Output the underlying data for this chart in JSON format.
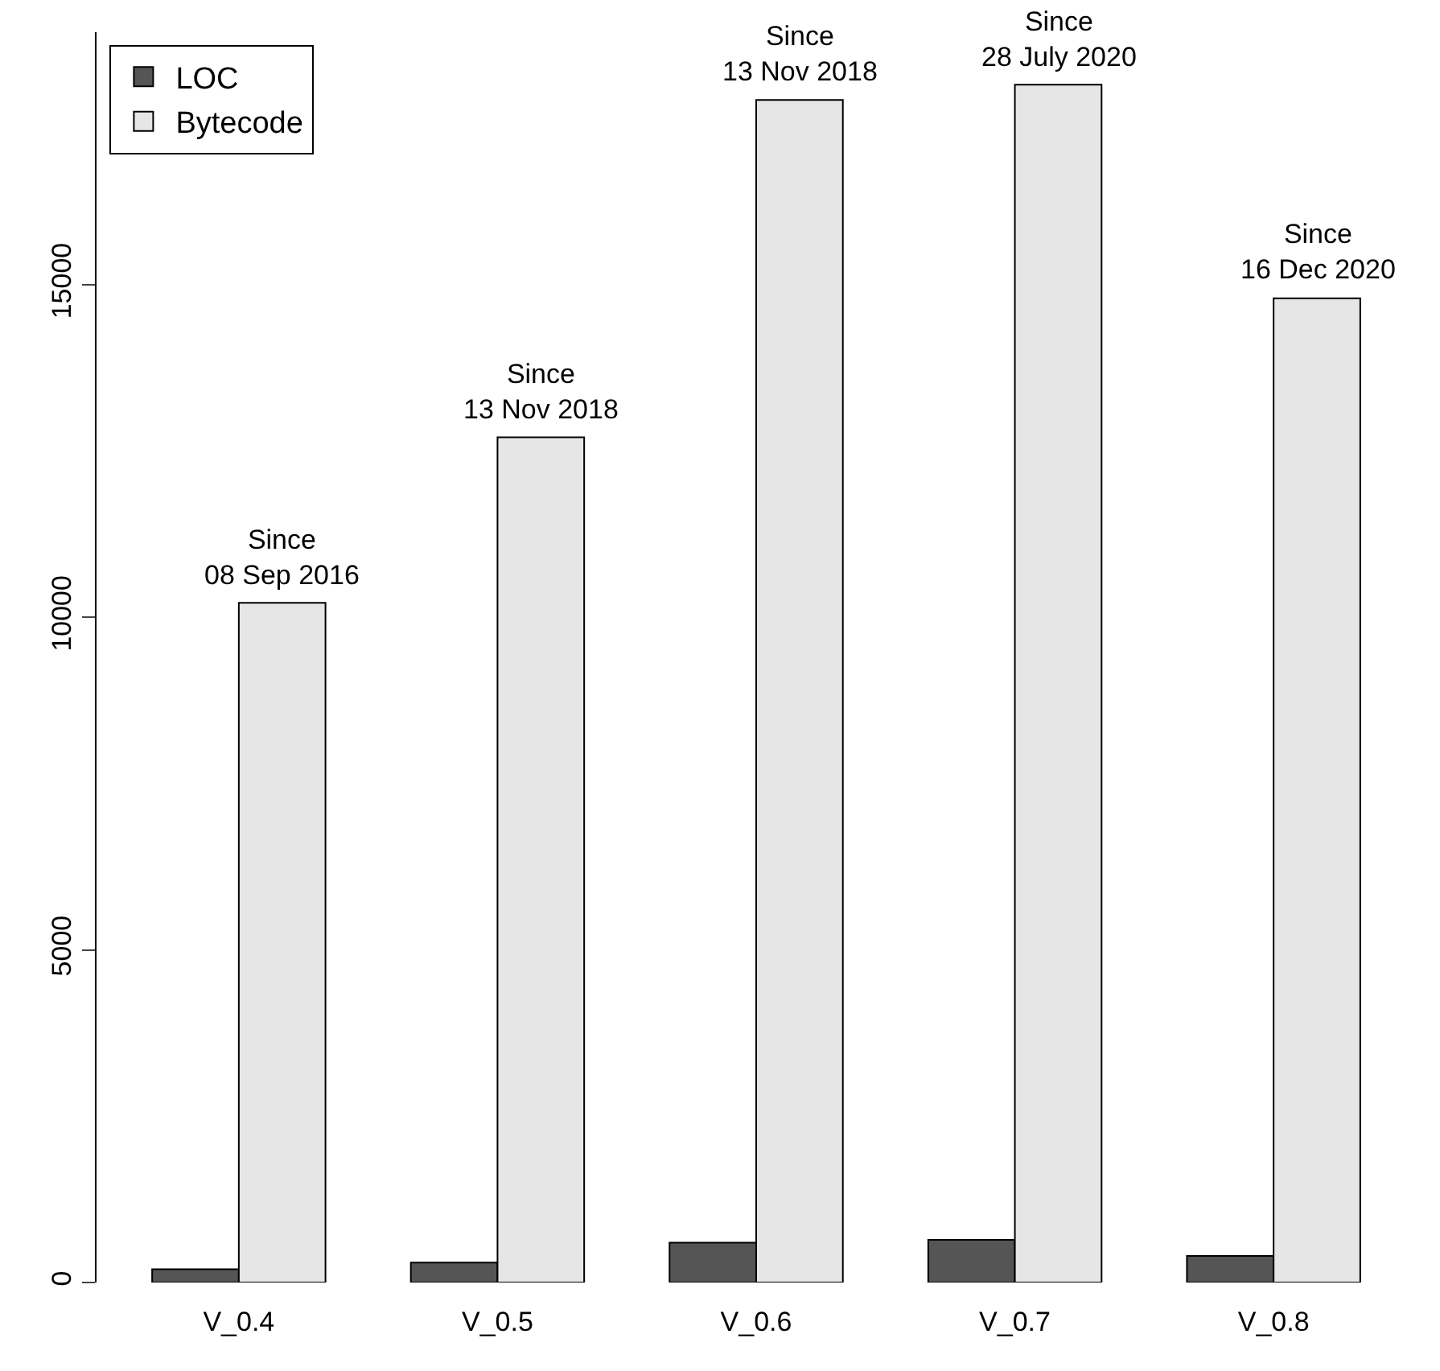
{
  "chart_data": {
    "type": "bar",
    "categories": [
      "V_0.4",
      "V_0.5",
      "V_0.6",
      "V_0.7",
      "V_0.8"
    ],
    "series": [
      {
        "name": "LOC",
        "color": "#555555",
        "values": [
          200,
          300,
          600,
          640,
          400
        ]
      },
      {
        "name": "Bytecode",
        "color": "#e6e6e6",
        "values": [
          10220,
          12710,
          17780,
          18010,
          14800
        ]
      }
    ],
    "ylim": [
      0,
      18800
    ],
    "yticks": [
      0,
      5000,
      10000,
      15000
    ],
    "legend": "top left",
    "annotations": [
      {
        "text": "Since\n08 Sep 2016",
        "x": "V_0.4",
        "y": 10220
      },
      {
        "text": "Since\n13 Nov 2018",
        "x": "V_0.5",
        "y": 12710
      },
      {
        "text": "Since\n13 Nov 2018",
        "x": "V_0.6",
        "y": 17780
      },
      {
        "text": "Since\n28 July 2020",
        "x": "V_0.7",
        "y": 18010
      },
      {
        "text": "Since\n16 Dec 2020",
        "x": "V_0.8",
        "y": 14800
      }
    ]
  }
}
